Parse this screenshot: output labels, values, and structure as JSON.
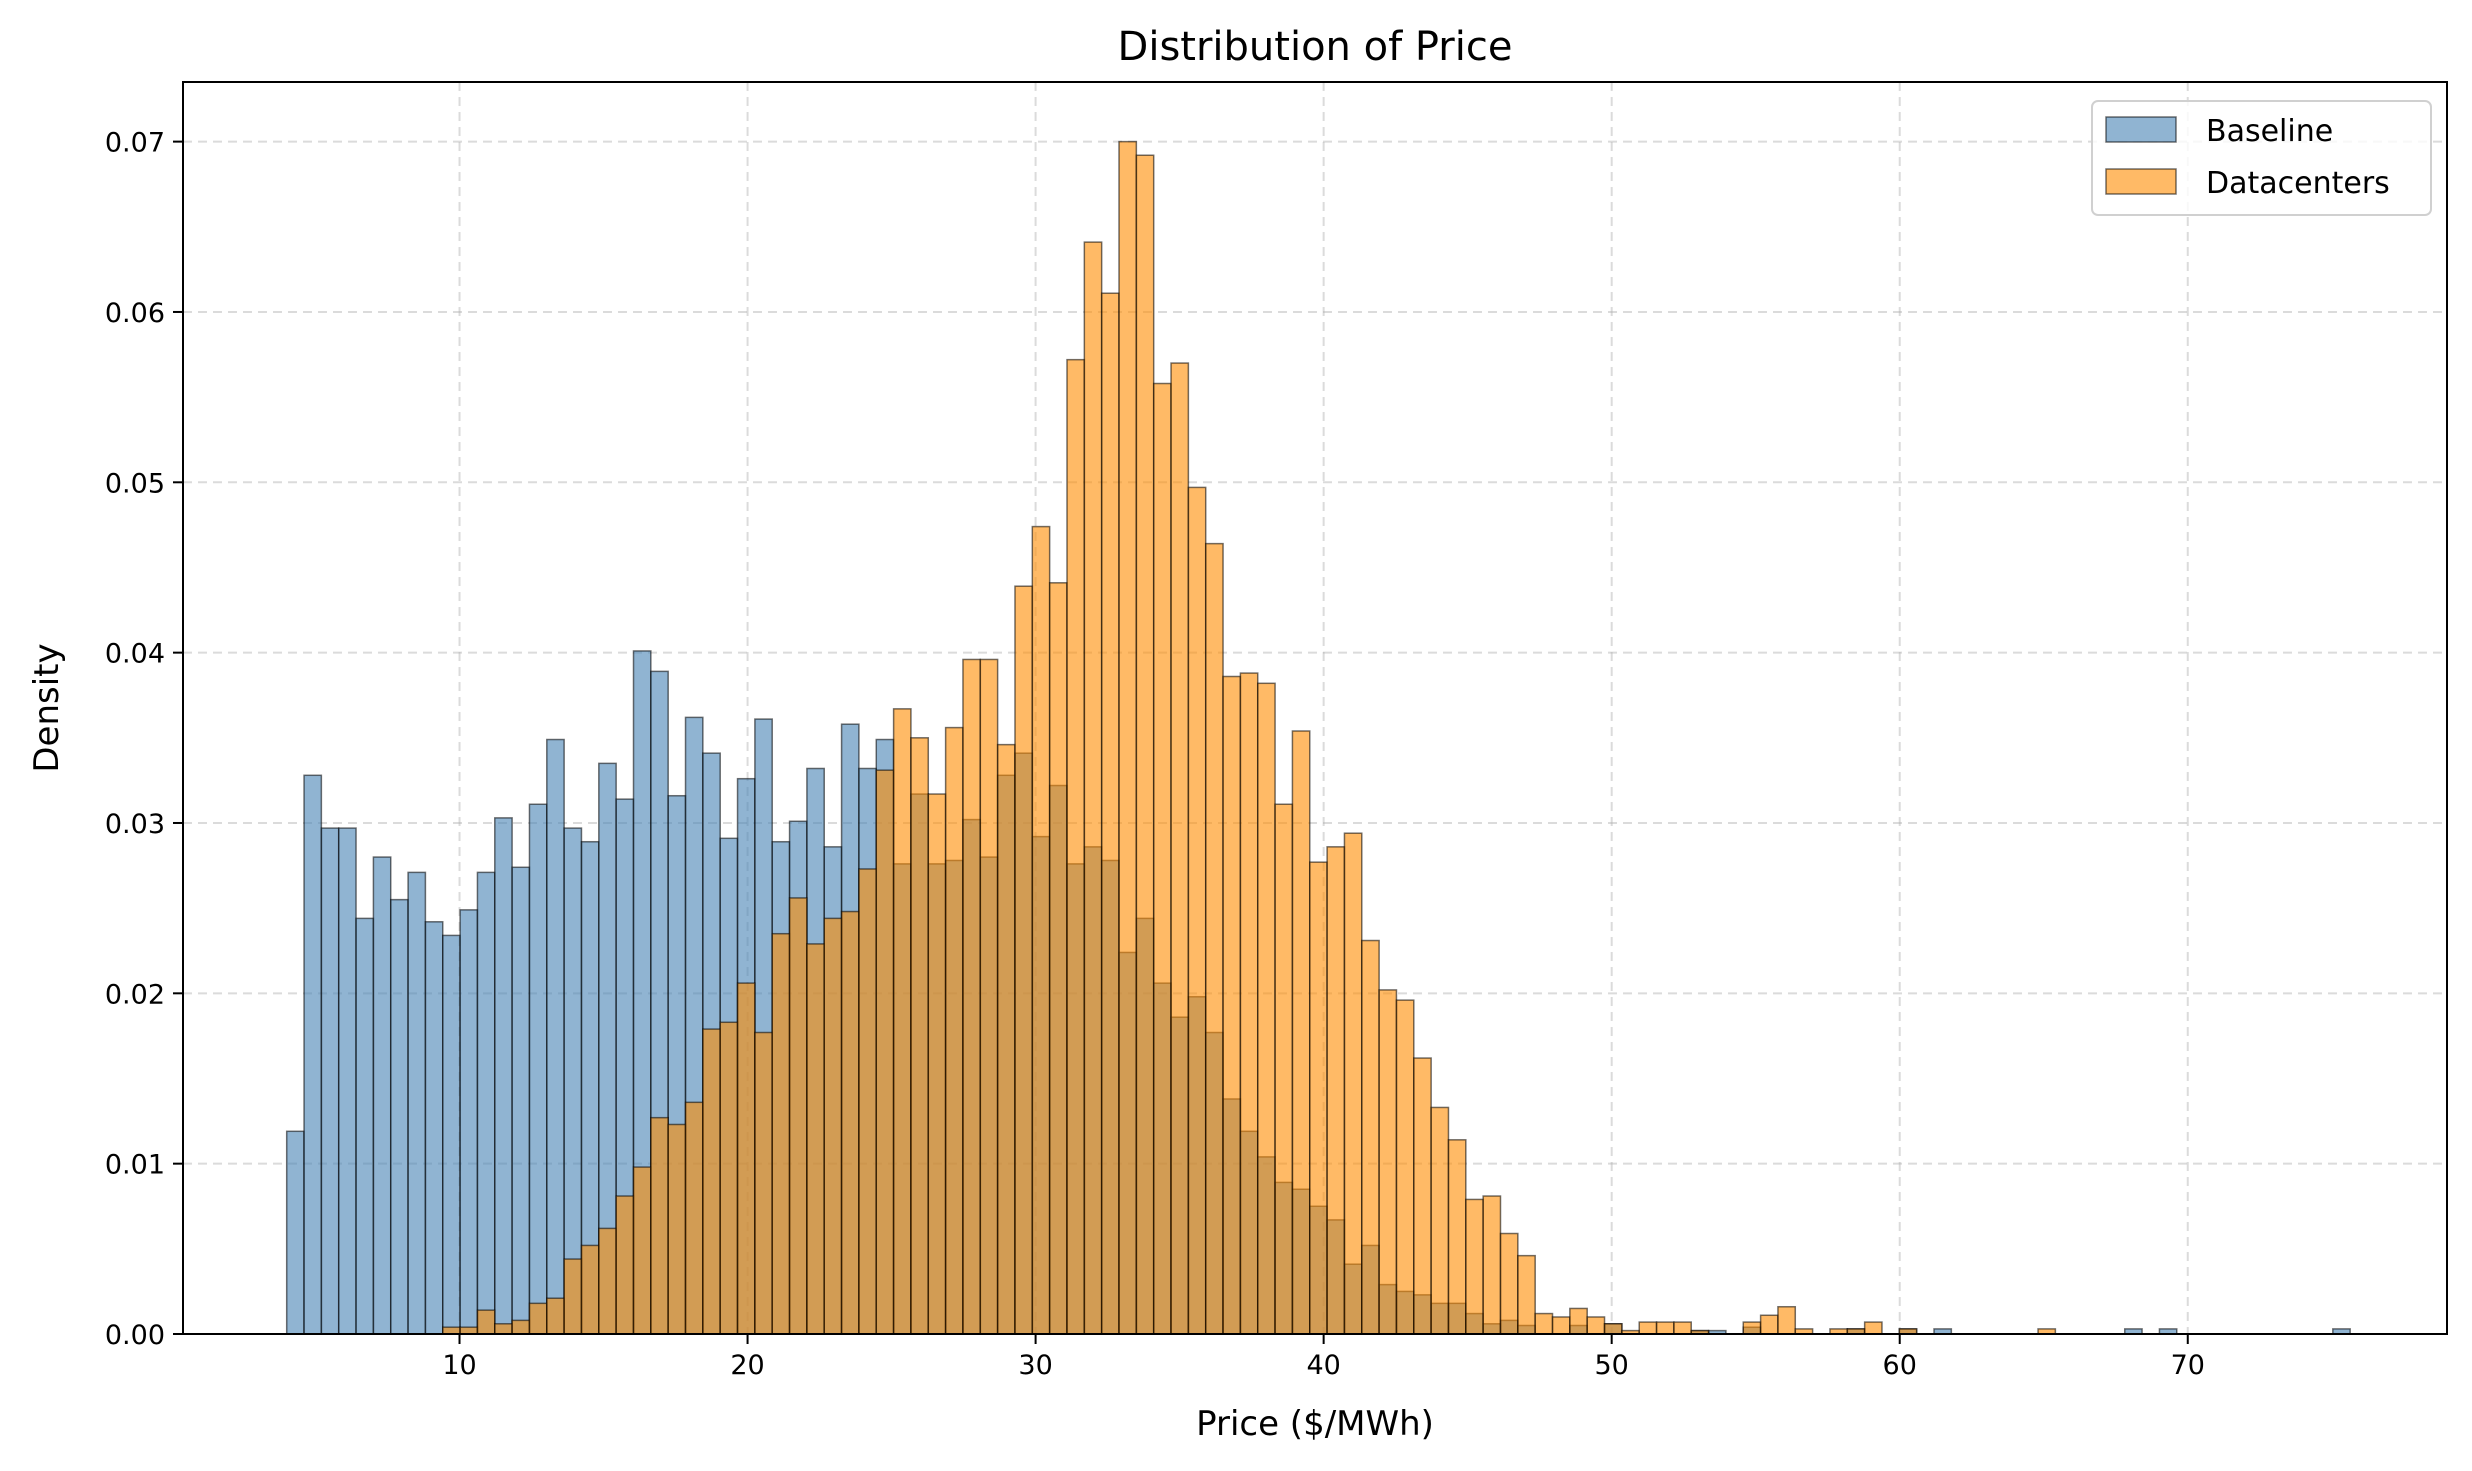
{
  "chart_data": {
    "type": "bar",
    "subtype": "overlaid-histogram",
    "title": "Distribution of Price",
    "xlabel": "Price ($/MWh)",
    "ylabel": "Density",
    "xlim": [
      0.4,
      79.0
    ],
    "ylim": [
      0,
      0.0735
    ],
    "xticks": [
      10,
      20,
      30,
      40,
      50,
      60,
      70
    ],
    "xtick_labels": [
      "10",
      "20",
      "30",
      "40",
      "50",
      "60",
      "70"
    ],
    "yticks": [
      0,
      0.01,
      0.02,
      0.03,
      0.04,
      0.05,
      0.06,
      0.07
    ],
    "ytick_labels": [
      "0.00",
      "0.01",
      "0.02",
      "0.03",
      "0.04",
      "0.05",
      "0.06",
      "0.07"
    ],
    "grid": true,
    "legend_position": "top-right",
    "bin_start": 4.0,
    "bin_width": 0.602,
    "series": [
      {
        "name": "Baseline",
        "color": "#4682B4",
        "alpha": 0.6,
        "values": [
          0.0119,
          0.0328,
          0.0297,
          0.0297,
          0.0244,
          0.028,
          0.0255,
          0.0271,
          0.0242,
          0.0234,
          0.0249,
          0.0271,
          0.0303,
          0.0274,
          0.0311,
          0.0349,
          0.0297,
          0.0289,
          0.0335,
          0.0314,
          0.0401,
          0.0389,
          0.0316,
          0.0362,
          0.0341,
          0.0291,
          0.0326,
          0.0361,
          0.0289,
          0.0301,
          0.0332,
          0.0286,
          0.0358,
          0.0332,
          0.0349,
          0.0276,
          0.0317,
          0.0276,
          0.0278,
          0.0302,
          0.028,
          0.0328,
          0.0341,
          0.0292,
          0.0322,
          0.0276,
          0.0286,
          0.0278,
          0.0224,
          0.0244,
          0.0206,
          0.0186,
          0.0198,
          0.0177,
          0.0138,
          0.0119,
          0.0104,
          0.0089,
          0.0085,
          0.0075,
          0.0067,
          0.0041,
          0.0052,
          0.0029,
          0.0025,
          0.0023,
          0.0018,
          0.0018,
          0.0012,
          0.0006,
          0.0008,
          0.0005,
          0,
          0,
          0.0005,
          0,
          0.0006,
          0,
          0,
          0,
          0,
          0.0002,
          0.0002,
          0,
          0.0004,
          0,
          0,
          0,
          0,
          0,
          0.0003,
          0,
          0,
          0.0003,
          0,
          0.0003,
          0,
          0,
          0,
          0,
          0,
          0,
          0,
          0,
          0,
          0,
          0.0003,
          0,
          0.0003,
          0,
          0,
          0,
          0,
          0,
          0,
          0,
          0,
          0,
          0.0003
        ]
      },
      {
        "name": "Datacenters",
        "color": "#FF8C00",
        "alpha": 0.6,
        "values": [
          0,
          0,
          0,
          0,
          0,
          0,
          0,
          0,
          0,
          0.0004,
          0.0004,
          0.0014,
          0.0006,
          0.0008,
          0.0018,
          0.0021,
          0.0044,
          0.0052,
          0.0062,
          0.0081,
          0.0098,
          0.0127,
          0.0123,
          0.0136,
          0.0179,
          0.0183,
          0.0206,
          0.0177,
          0.0235,
          0.0256,
          0.0229,
          0.0244,
          0.0248,
          0.0273,
          0.0331,
          0.0367,
          0.035,
          0.0317,
          0.0356,
          0.0396,
          0.0396,
          0.0346,
          0.0439,
          0.0474,
          0.0441,
          0.0572,
          0.0641,
          0.0611,
          0.07,
          0.0692,
          0.0558,
          0.057,
          0.0497,
          0.0464,
          0.0386,
          0.0388,
          0.0382,
          0.0311,
          0.0354,
          0.0277,
          0.0286,
          0.0294,
          0.0231,
          0.0202,
          0.0196,
          0.0162,
          0.0133,
          0.0114,
          0.0079,
          0.0081,
          0.0059,
          0.0046,
          0.0012,
          0.001,
          0.0015,
          0.001,
          0.0006,
          0.0002,
          0.0007,
          0.0007,
          0.0007,
          0.0002,
          0,
          0,
          0.0007,
          0.0011,
          0.0016,
          0.0003,
          0,
          0.0003,
          0.0003,
          0.0007,
          0,
          0.0003,
          0,
          0,
          0,
          0,
          0,
          0,
          0,
          0.0003,
          0,
          0,
          0,
          0,
          0,
          0,
          0,
          0,
          0,
          0,
          0,
          0,
          0,
          0,
          0,
          0,
          0
        ]
      }
    ]
  }
}
